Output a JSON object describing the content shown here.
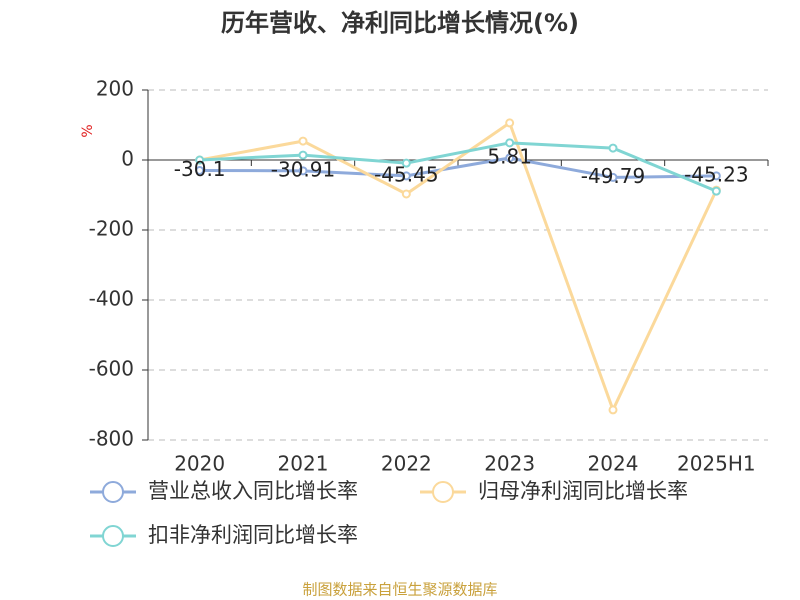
{
  "chart_data": {
    "type": "line",
    "title": "历年营收、净利同比增长情况(%)",
    "y_label": "%",
    "source": "制图数据来自恒生聚源数据库",
    "categories": [
      "2020",
      "2021",
      "2022",
      "2023",
      "2024",
      "2025H1"
    ],
    "series": [
      {
        "name": "营业总收入同比增长率",
        "color": "#8eaadb",
        "values": [
          -30.1,
          -30.91,
          -45.45,
          5.81,
          -49.79,
          -45.23
        ],
        "show_labels": true
      },
      {
        "name": "归母净利润同比增长率",
        "color": "#fbd99b",
        "values": [
          0,
          54,
          -97,
          106,
          -714,
          -86
        ],
        "show_labels": false
      },
      {
        "name": "扣非净利润同比增长率",
        "color": "#80d5d3",
        "values": [
          0,
          14,
          -9,
          49,
          34,
          -89
        ],
        "show_labels": false
      }
    ],
    "ylim": [
      -800,
      200
    ],
    "yticks": [
      -800,
      -600,
      -400,
      -200,
      0,
      200
    ],
    "grid": true
  }
}
